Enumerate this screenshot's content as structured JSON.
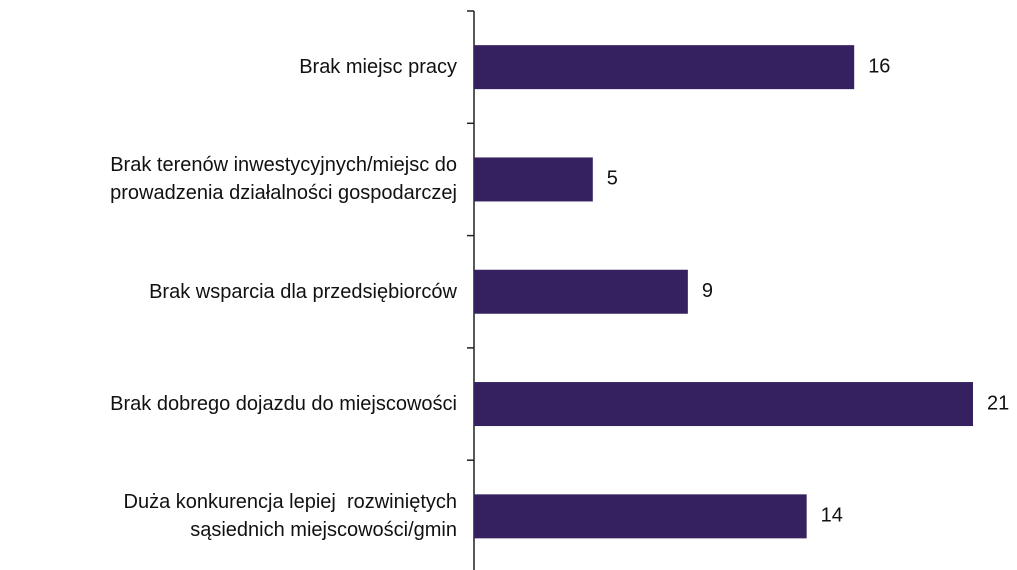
{
  "chart_data": {
    "type": "bar",
    "orientation": "horizontal",
    "categories": [
      "Brak miejsc pracy",
      "Brak terenów inwestycyjnych/miejsc do\nprowadzenia działalności gospodarczej",
      "Brak wsparcia dla przedsiębiorców",
      "Brak dobrego dojazdu do miejscowości",
      "Duża konkurencja lepiej  rozwiniętych\nsąsiednich miejscowości/gmin"
    ],
    "values": [
      16,
      5,
      9,
      21,
      14
    ],
    "color": "#35215f"
  }
}
